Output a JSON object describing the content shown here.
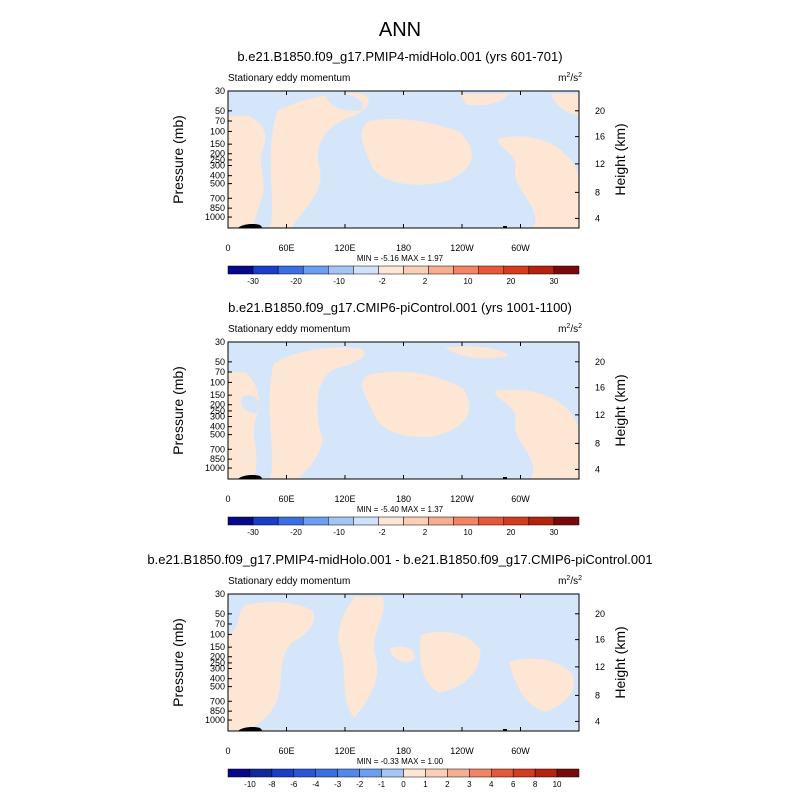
{
  "figure_title": "ANN",
  "chart_data": [
    {
      "type": "heatmap",
      "title": "b.e21.B1850.f09_g17.PMIP4-midHolo.001 (yrs 601-701)",
      "variable": "Stationary eddy momentum",
      "units": "m²/s²",
      "units_base": "m",
      "units_sup1": "2",
      "units_mid": "/s",
      "units_sup2": "2",
      "ylabel": "Pressure (mb)",
      "y2label": "Height (km)",
      "x_ticks": [
        "0",
        "60E",
        "120E",
        "180",
        "120W",
        "60W"
      ],
      "y_ticks": [
        "30",
        "50",
        "70",
        "100",
        "150",
        "200",
        "250",
        "300",
        "400",
        "500",
        "700",
        "850",
        "1000"
      ],
      "y2_ticks": [
        "20",
        "16",
        "12",
        "8",
        "4"
      ],
      "stats_text": "MIN = -5.16  MAX = 1.97",
      "min": -5.16,
      "max": 1.97,
      "colorbar_labels": [
        "-30",
        "-20",
        "-10",
        "-2",
        "2",
        "10",
        "20",
        "30"
      ],
      "colorbar_colors": [
        "#08088c",
        "#1b3ec8",
        "#3a6fe3",
        "#6b9ef0",
        "#a3c6f5",
        "#cfe1fb",
        "#fde6d3",
        "#fbcfb5",
        "#f7ad8f",
        "#f28463",
        "#e8573a",
        "#d63a1f",
        "#b5230e",
        "#7a0a0a"
      ],
      "fill_colors": {
        "negative": "#d5e6fb",
        "positive": "#fde6d3"
      }
    },
    {
      "type": "heatmap",
      "title": "b.e21.B1850.f09_g17.CMIP6-piControl.001 (yrs 1001-1100)",
      "variable": "Stationary eddy momentum",
      "units": "m²/s²",
      "units_base": "m",
      "units_sup1": "2",
      "units_mid": "/s",
      "units_sup2": "2",
      "ylabel": "Pressure (mb)",
      "y2label": "Height (km)",
      "x_ticks": [
        "0",
        "60E",
        "120E",
        "180",
        "120W",
        "60W"
      ],
      "y_ticks": [
        "30",
        "50",
        "70",
        "100",
        "150",
        "200",
        "250",
        "300",
        "400",
        "500",
        "700",
        "850",
        "1000"
      ],
      "y2_ticks": [
        "20",
        "16",
        "12",
        "8",
        "4"
      ],
      "stats_text": "MIN = -5.40  MAX = 1.37",
      "min": -5.4,
      "max": 1.37,
      "colorbar_labels": [
        "-30",
        "-20",
        "-10",
        "-2",
        "2",
        "10",
        "20",
        "30"
      ],
      "colorbar_colors": [
        "#08088c",
        "#1b3ec8",
        "#3a6fe3",
        "#6b9ef0",
        "#a3c6f5",
        "#cfe1fb",
        "#fde6d3",
        "#fbcfb5",
        "#f7ad8f",
        "#f28463",
        "#e8573a",
        "#d63a1f",
        "#b5230e",
        "#7a0a0a"
      ],
      "fill_colors": {
        "negative": "#d5e6fb",
        "positive": "#fde6d3"
      }
    },
    {
      "type": "heatmap",
      "title": "b.e21.B1850.f09_g17.PMIP4-midHolo.001 - b.e21.B1850.f09_g17.CMIP6-piControl.001",
      "variable": "Stationary eddy momentum",
      "units": "m²/s²",
      "units_base": "m",
      "units_sup1": "2",
      "units_mid": "/s",
      "units_sup2": "2",
      "ylabel": "Pressure (mb)",
      "y2label": "Height (km)",
      "x_ticks": [
        "0",
        "60E",
        "120E",
        "180",
        "120W",
        "60W"
      ],
      "y_ticks": [
        "30",
        "50",
        "70",
        "100",
        "150",
        "200",
        "250",
        "300",
        "400",
        "500",
        "700",
        "850",
        "1000"
      ],
      "y2_ticks": [
        "20",
        "16",
        "12",
        "8",
        "4"
      ],
      "stats_text": "MIN = -0.33  MAX = 1.00",
      "min": -0.33,
      "max": 1.0,
      "colorbar_labels": [
        "-10",
        "-8",
        "-6",
        "-4",
        "-3",
        "-2",
        "-1",
        "0",
        "1",
        "2",
        "3",
        "4",
        "6",
        "8",
        "10"
      ],
      "colorbar_colors": [
        "#08088c",
        "#102a9e",
        "#1b3ec8",
        "#2a55d8",
        "#3a6fe3",
        "#5288ea",
        "#6b9ef0",
        "#a3c6f5",
        "#fde6d3",
        "#fbcfb5",
        "#f7ad8f",
        "#f28463",
        "#e8573a",
        "#d63a1f",
        "#b5230e",
        "#7a0a0a"
      ],
      "fill_colors": {
        "negative": "#d5e6fb",
        "positive": "#fde6d3"
      }
    }
  ]
}
